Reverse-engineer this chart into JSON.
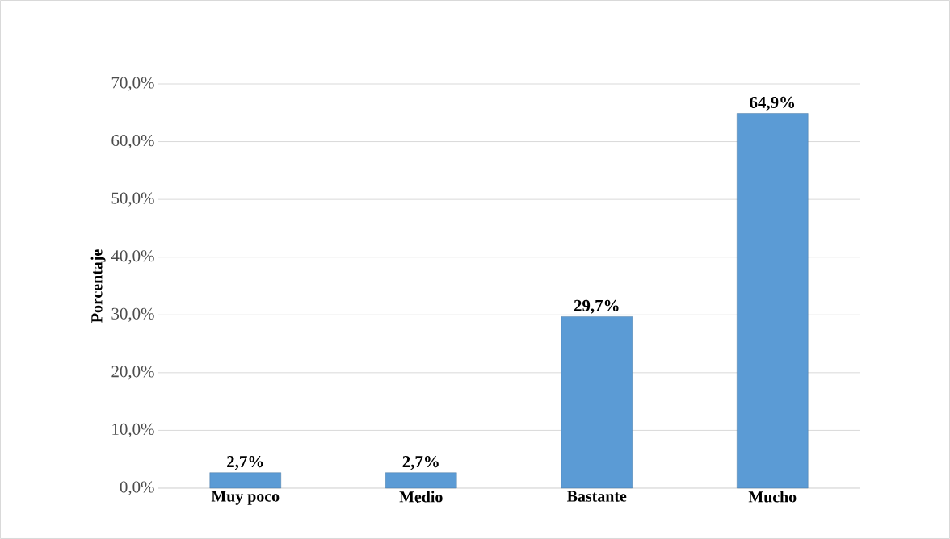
{
  "chart_data": {
    "type": "bar",
    "ylabel": "Porcentaje",
    "categories": [
      "Muy poco",
      "Medio",
      "Bastante",
      "Mucho"
    ],
    "values": [
      2.7,
      2.7,
      29.7,
      64.9
    ],
    "value_labels": [
      "2,7%",
      "2,7%",
      "29,7%",
      "64,9%"
    ],
    "color": "#5b9bd5",
    "ylim": [
      0,
      70
    ],
    "yticks": [
      {
        "value": 0,
        "label": "0,0%"
      },
      {
        "value": 10,
        "label": "10,0%"
      },
      {
        "value": 20,
        "label": "20,0%"
      },
      {
        "value": 30,
        "label": "30,0%"
      },
      {
        "value": 40,
        "label": "40,0%"
      },
      {
        "value": 50,
        "label": "50,0%"
      },
      {
        "value": 60,
        "label": "60,0%"
      },
      {
        "value": 70,
        "label": "70,0%"
      }
    ],
    "grid": "y"
  }
}
